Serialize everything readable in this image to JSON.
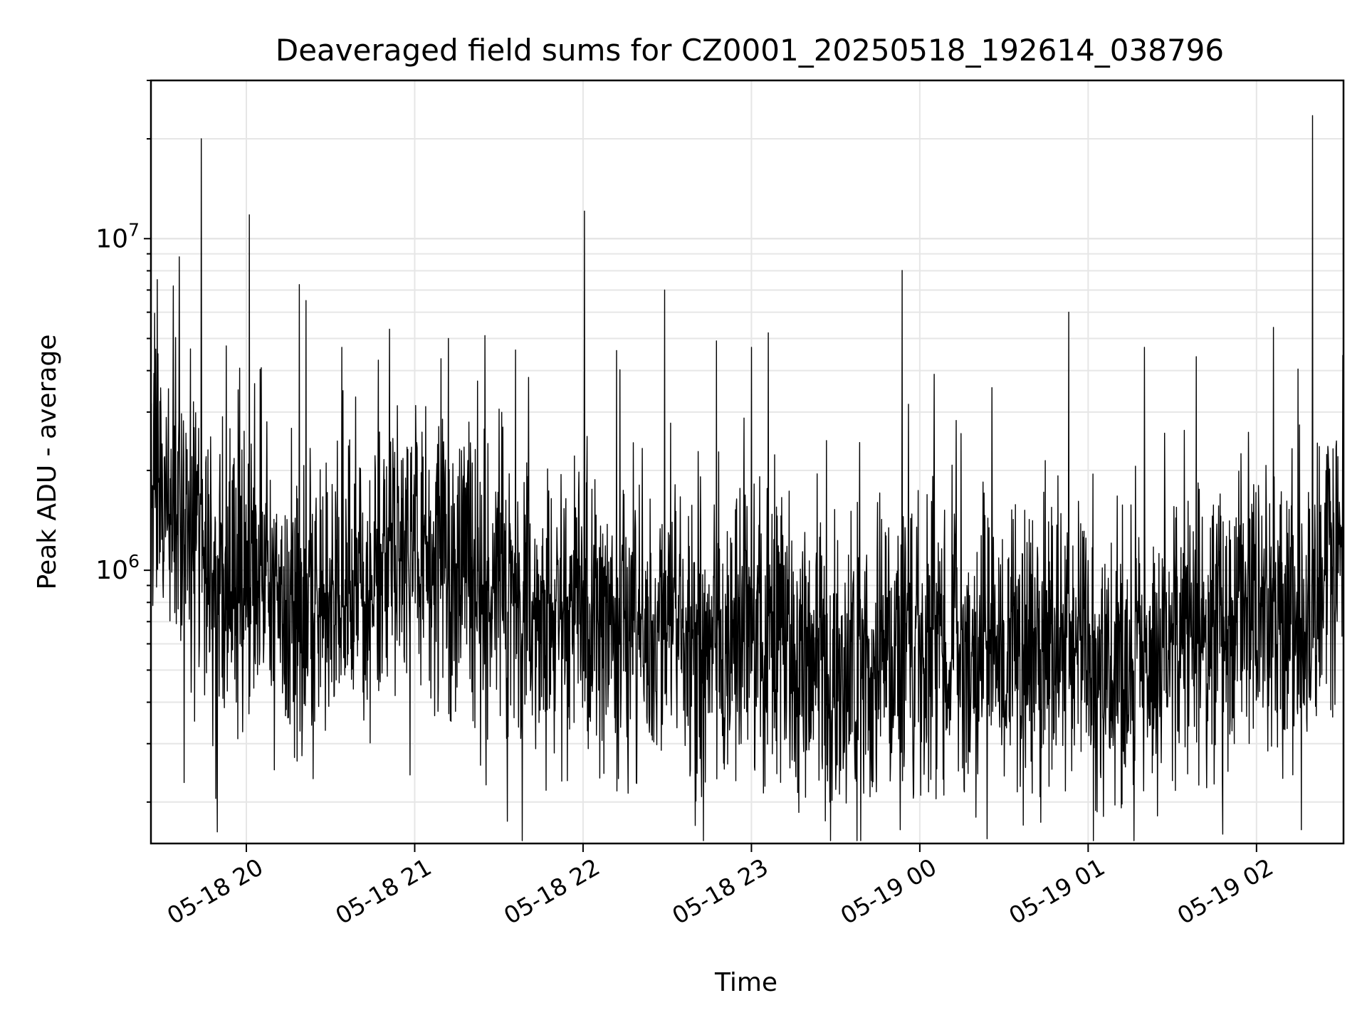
{
  "chart_data": {
    "type": "line",
    "title": "Deaveraged field sums for CZ0001_20250518_192614_038796",
    "xlabel": "Time",
    "ylabel": "Peak ADU - average",
    "yscale": "log",
    "ylim": [
      150000,
      30000000
    ],
    "xlim": [
      "2025-05-18 19:26",
      "2025-05-19 02:31"
    ],
    "grid": true,
    "line_color": "#000000",
    "x_ticks": [
      "05-18 20",
      "05-18 21",
      "05-18 22",
      "05-18 23",
      "05-19 00",
      "05-19 01",
      "05-19 02"
    ],
    "y_ticks": [
      {
        "base": "10",
        "exp": "6",
        "value": 1000000
      },
      {
        "base": "10",
        "exp": "7",
        "value": 10000000
      }
    ],
    "series": [
      {
        "time_x": [
          "2025-05-18 19:26",
          "2025-05-18 19:30",
          "2025-05-18 19:35",
          "2025-05-18 19:40",
          "2025-05-18 19:45",
          "2025-05-18 19:50",
          "2025-05-18 19:55",
          "2025-05-18 20:00",
          "2025-05-18 20:05",
          "2025-05-18 20:15",
          "2025-05-18 20:30",
          "2025-05-18 20:45",
          "2025-05-18 21:00",
          "2025-05-18 21:15",
          "2025-05-18 21:30",
          "2025-05-18 21:45",
          "2025-05-18 22:00",
          "2025-05-18 22:15",
          "2025-05-18 22:30",
          "2025-05-18 22:45",
          "2025-05-18 23:00",
          "2025-05-18 23:15",
          "2025-05-18 23:30",
          "2025-05-18 23:45",
          "2025-05-19 00:00",
          "2025-05-19 00:15",
          "2025-05-19 00:30",
          "2025-05-19 00:45",
          "2025-05-19 01:00",
          "2025-05-19 01:15",
          "2025-05-19 01:30",
          "2025-05-19 01:45",
          "2025-05-19 02:00",
          "2025-05-19 02:15",
          "2025-05-19 02:25",
          "2025-05-19 02:31"
        ],
        "values": [
          1600000,
          2000000,
          1500000,
          1300000,
          1200000,
          1000000,
          800000,
          900000,
          1200000,
          700000,
          800000,
          1000000,
          1100000,
          1000000,
          900000,
          700000,
          800000,
          600000,
          700000,
          550000,
          650000,
          550000,
          450000,
          550000,
          600000,
          550000,
          600000,
          600000,
          550000,
          500000,
          650000,
          700000,
          700000,
          700000,
          1000000,
          1400000
        ]
      }
    ],
    "spikes": [
      {
        "t": "2025-05-18 19:44",
        "v": 20000000
      },
      {
        "t": "2025-05-18 20:01",
        "v": 11800000
      },
      {
        "t": "2025-05-18 19:34",
        "v": 7200000
      },
      {
        "t": "2025-05-18 22:29",
        "v": 7000000
      },
      {
        "t": "2025-05-19 00:53",
        "v": 6000000
      },
      {
        "t": "2025-05-19 02:20",
        "v": 23500000
      },
      {
        "t": "2025-05-19 02:06",
        "v": 5400000
      },
      {
        "t": "2025-05-18 23:06",
        "v": 5200000
      },
      {
        "t": "2025-05-18 21:25",
        "v": 5100000
      },
      {
        "t": "2025-05-18 21:12",
        "v": 5000000
      },
      {
        "t": "2025-05-19 01:20",
        "v": 4700000
      },
      {
        "t": "2025-05-18 22:12",
        "v": 4600000
      },
      {
        "t": "2025-05-18 23:00",
        "v": 4700000
      },
      {
        "t": "2025-05-18 20:34",
        "v": 4700000
      },
      {
        "t": "2025-05-18 20:47",
        "v": 4300000
      },
      {
        "t": "2025-05-19 00:05",
        "v": 3900000
      },
      {
        "t": "2025-05-18 19:57",
        "v": 3500000
      }
    ],
    "dips": [
      {
        "t": "2025-05-18 19:49",
        "v": 205000
      },
      {
        "t": "2025-05-18 21:33",
        "v": 175000
      },
      {
        "t": "2025-05-18 22:40",
        "v": 170000
      },
      {
        "t": "2025-05-18 23:53",
        "v": 165000
      },
      {
        "t": "2025-05-19 00:24",
        "v": 155000
      },
      {
        "t": "2025-05-19 01:48",
        "v": 160000
      },
      {
        "t": "2025-05-19 02:16",
        "v": 165000
      },
      {
        "t": "2025-05-18 20:10",
        "v": 250000
      },
      {
        "t": "2025-05-19 00:20",
        "v": 180000
      }
    ]
  }
}
